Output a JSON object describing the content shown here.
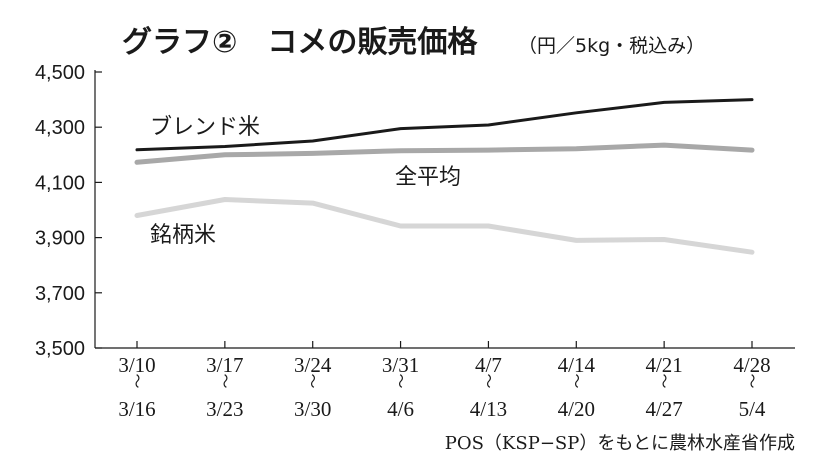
{
  "title": {
    "main": "グラフ②　コメの販売価格",
    "unit": "（円／5kg・税込み）"
  },
  "source": "POS（KSP−SP）をもとに農林水産省作成",
  "chart_data": {
    "type": "line",
    "title": "グラフ②　コメの販売価格",
    "unit_note": "（円／5kg・税込み）",
    "categories": [
      {
        "from": "3/10",
        "sep": "〜",
        "to": "3/16"
      },
      {
        "from": "3/17",
        "sep": "〜",
        "to": "3/23"
      },
      {
        "from": "3/24",
        "sep": "〜",
        "to": "3/30"
      },
      {
        "from": "3/31",
        "sep": "〜",
        "to": "4/6"
      },
      {
        "from": "4/7",
        "sep": "〜",
        "to": "4/13"
      },
      {
        "from": "4/14",
        "sep": "〜",
        "to": "4/20"
      },
      {
        "from": "4/21",
        "sep": "〜",
        "to": "4/27"
      },
      {
        "from": "4/28",
        "sep": "〜",
        "to": "5/4"
      }
    ],
    "ylim": [
      3500,
      4500
    ],
    "yticks": [
      {
        "value": 3500,
        "label": "3,500"
      },
      {
        "value": 3700,
        "label": "3,700"
      },
      {
        "value": 3900,
        "label": "3,900"
      },
      {
        "value": 4100,
        "label": "4,100"
      },
      {
        "value": 4300,
        "label": "4,300"
      },
      {
        "value": 4500,
        "label": "4,500"
      }
    ],
    "grid": false,
    "legend": "inline labels",
    "series": [
      {
        "name": "ブレンド米",
        "color": "#1a1a1a",
        "values": [
          4218,
          4230,
          4250,
          4295,
          4308,
          4352,
          4390,
          4400
        ]
      },
      {
        "name": "全平均",
        "color": "#a8a8a8",
        "values": [
          4173,
          4200,
          4205,
          4215,
          4217,
          4222,
          4235,
          4217
        ]
      },
      {
        "name": "銘柄米",
        "color": "#d6d6d6",
        "values": [
          3980,
          4038,
          4025,
          3942,
          3942,
          3890,
          3893,
          3847
        ]
      }
    ]
  }
}
